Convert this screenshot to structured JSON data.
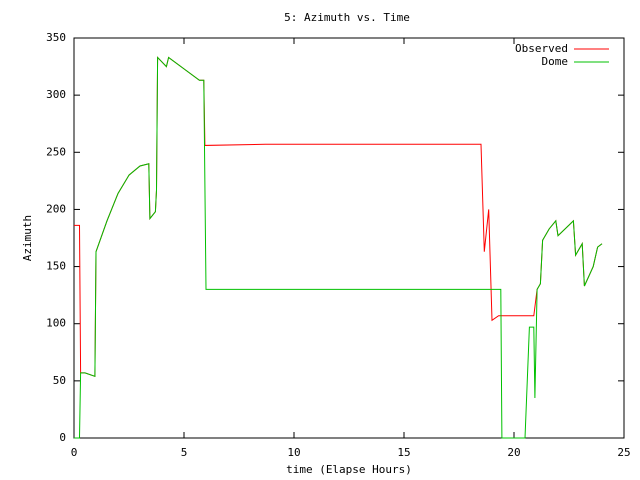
{
  "chart_data": {
    "type": "line",
    "title": "5: Azimuth vs. Time",
    "x_label": "time (Elapse Hours)",
    "y_label": "Azimuth",
    "xlim": [
      0,
      25
    ],
    "xticks": [
      0,
      5,
      10,
      15,
      20,
      25
    ],
    "ylim": [
      0,
      350
    ],
    "yticks": [
      0,
      50,
      100,
      150,
      200,
      250,
      300,
      350
    ],
    "grid": false,
    "legend": "top-right",
    "series": [
      {
        "name": "Observed",
        "color": "#ff0000",
        "x": [
          0,
          0.25,
          0.3,
          0.5,
          0.95,
          1.0,
          1.5,
          2.0,
          2.5,
          3.0,
          3.4,
          3.45,
          3.7,
          3.75,
          3.8,
          4.2,
          4.3,
          5.0,
          5.7,
          5.9,
          5.95,
          8.7,
          18.5,
          18.65,
          18.85,
          19.0,
          19.3,
          20.9,
          21.05,
          21.2,
          21.3,
          21.6,
          21.9,
          22.0,
          22.7,
          22.8,
          23.1,
          23.2,
          23.6,
          23.8,
          24.0
        ],
        "values": [
          186,
          186,
          57,
          57,
          54,
          163,
          190,
          214,
          230,
          238,
          240,
          192,
          198,
          217,
          333,
          325,
          333,
          323,
          313,
          313,
          256,
          257,
          257,
          163,
          200,
          103,
          107,
          107,
          130,
          135,
          173,
          183,
          190,
          177,
          190,
          160,
          170,
          133,
          150,
          167,
          170
        ]
      },
      {
        "name": "Dome",
        "color": "#00c000",
        "x": [
          0,
          0.25,
          0.3,
          0.5,
          0.95,
          1.0,
          1.5,
          2.0,
          2.5,
          3.0,
          3.4,
          3.45,
          3.7,
          3.75,
          3.8,
          4.2,
          4.3,
          5.0,
          5.7,
          5.9,
          6.0,
          19.4,
          19.45,
          20.5,
          20.7,
          20.9,
          20.95,
          21.05,
          21.2,
          21.3,
          21.6,
          21.9,
          22.0,
          22.7,
          22.8,
          23.1,
          23.2,
          23.6,
          23.8,
          24.0
        ],
        "values": [
          0,
          0,
          57,
          57,
          54,
          163,
          190,
          214,
          230,
          238,
          240,
          192,
          198,
          217,
          333,
          325,
          333,
          323,
          313,
          313,
          130,
          130,
          0,
          0,
          97,
          97,
          35,
          130,
          135,
          173,
          183,
          190,
          177,
          190,
          160,
          170,
          133,
          150,
          167,
          170
        ]
      }
    ]
  }
}
